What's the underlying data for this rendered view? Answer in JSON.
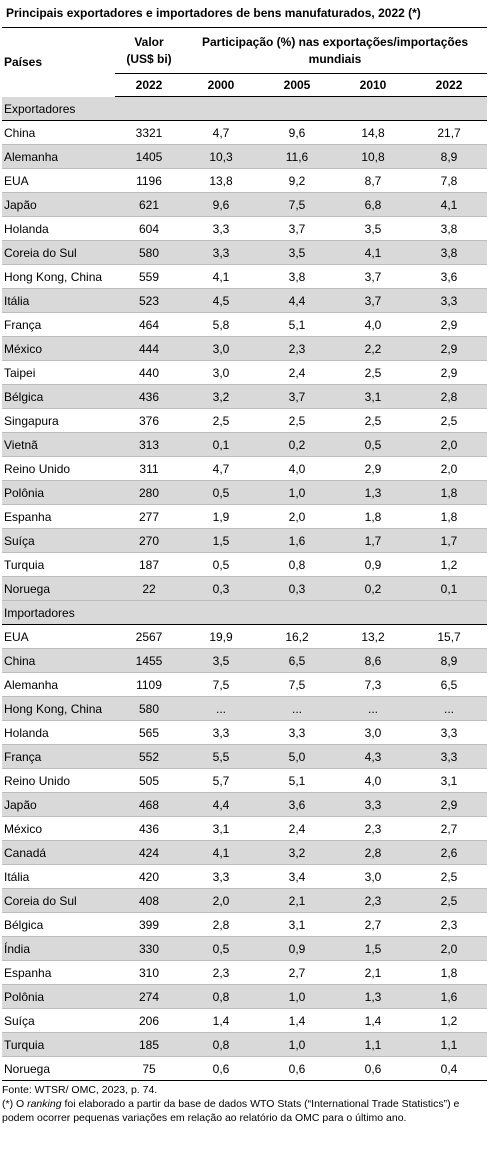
{
  "title": "Principais exportadores e importadores de bens manufaturados, 2022 (*)",
  "header": {
    "country": "Países",
    "valor_line1": "Valor",
    "valor_line2": "(US$ bi)",
    "participacao": "Participação (%) nas exportações/importações mundiais",
    "years": [
      "2022",
      "2000",
      "2005",
      "2010",
      "2022"
    ]
  },
  "sections": [
    {
      "label": "Exportadores",
      "rows": [
        {
          "name": "China",
          "valor": "3321",
          "p2000": "4,7",
          "p2005": "9,6",
          "p2010": "14,8",
          "p2022": "21,7"
        },
        {
          "name": "Alemanha",
          "valor": "1405",
          "p2000": "10,3",
          "p2005": "11,6",
          "p2010": "10,8",
          "p2022": "8,9"
        },
        {
          "name": "EUA",
          "valor": "1196",
          "p2000": "13,8",
          "p2005": "9,2",
          "p2010": "8,7",
          "p2022": "7,8"
        },
        {
          "name": "Japão",
          "valor": "621",
          "p2000": "9,6",
          "p2005": "7,5",
          "p2010": "6,8",
          "p2022": "4,1"
        },
        {
          "name": "Holanda",
          "valor": "604",
          "p2000": "3,3",
          "p2005": "3,7",
          "p2010": "3,5",
          "p2022": "3,8"
        },
        {
          "name": "Coreia do Sul",
          "valor": "580",
          "p2000": "3,3",
          "p2005": "3,5",
          "p2010": "4,1",
          "p2022": "3,8"
        },
        {
          "name": "Hong Kong, China",
          "valor": "559",
          "p2000": "4,1",
          "p2005": "3,8",
          "p2010": "3,7",
          "p2022": "3,6"
        },
        {
          "name": "Itália",
          "valor": "523",
          "p2000": "4,5",
          "p2005": "4,4",
          "p2010": "3,7",
          "p2022": "3,3"
        },
        {
          "name": "França",
          "valor": "464",
          "p2000": "5,8",
          "p2005": "5,1",
          "p2010": "4,0",
          "p2022": "2,9"
        },
        {
          "name": "México",
          "valor": "444",
          "p2000": "3,0",
          "p2005": "2,3",
          "p2010": "2,2",
          "p2022": "2,9"
        },
        {
          "name": "Taipei",
          "valor": "440",
          "p2000": "3,0",
          "p2005": "2,4",
          "p2010": "2,5",
          "p2022": "2,9"
        },
        {
          "name": "Bélgica",
          "valor": "436",
          "p2000": "3,2",
          "p2005": "3,7",
          "p2010": "3,1",
          "p2022": "2,8"
        },
        {
          "name": "Singapura",
          "valor": "376",
          "p2000": "2,5",
          "p2005": "2,5",
          "p2010": "2,5",
          "p2022": "2,5"
        },
        {
          "name": "Vietnã",
          "valor": "313",
          "p2000": "0,1",
          "p2005": "0,2",
          "p2010": "0,5",
          "p2022": "2,0"
        },
        {
          "name": "Reino Unido",
          "valor": "311",
          "p2000": "4,7",
          "p2005": "4,0",
          "p2010": "2,9",
          "p2022": "2,0"
        },
        {
          "name": "Polônia",
          "valor": "280",
          "p2000": "0,5",
          "p2005": "1,0",
          "p2010": "1,3",
          "p2022": "1,8"
        },
        {
          "name": "Espanha",
          "valor": "277",
          "p2000": "1,9",
          "p2005": "2,0",
          "p2010": "1,8",
          "p2022": "1,8"
        },
        {
          "name": "Suíça",
          "valor": "270",
          "p2000": "1,5",
          "p2005": "1,6",
          "p2010": "1,7",
          "p2022": "1,7"
        },
        {
          "name": "Turquia",
          "valor": "187",
          "p2000": "0,5",
          "p2005": "0,8",
          "p2010": "0,9",
          "p2022": "1,2"
        },
        {
          "name": "Noruega",
          "valor": "22",
          "p2000": "0,3",
          "p2005": "0,3",
          "p2010": "0,2",
          "p2022": "0,1"
        }
      ]
    },
    {
      "label": "Importadores",
      "rows": [
        {
          "name": "EUA",
          "valor": "2567",
          "p2000": "19,9",
          "p2005": "16,2",
          "p2010": "13,2",
          "p2022": "15,7"
        },
        {
          "name": "China",
          "valor": "1455",
          "p2000": "3,5",
          "p2005": "6,5",
          "p2010": "8,6",
          "p2022": "8,9"
        },
        {
          "name": "Alemanha",
          "valor": "1109",
          "p2000": "7,5",
          "p2005": "7,5",
          "p2010": "7,3",
          "p2022": "6,5"
        },
        {
          "name": "Hong Kong, China",
          "valor": "580",
          "p2000": "...",
          "p2005": "...",
          "p2010": "...",
          "p2022": "..."
        },
        {
          "name": "Holanda",
          "valor": "565",
          "p2000": "3,3",
          "p2005": "3,3",
          "p2010": "3,0",
          "p2022": "3,3"
        },
        {
          "name": "França",
          "valor": "552",
          "p2000": "5,5",
          "p2005": "5,0",
          "p2010": "4,3",
          "p2022": "3,3"
        },
        {
          "name": "Reino Unido",
          "valor": "505",
          "p2000": "5,7",
          "p2005": "5,1",
          "p2010": "4,0",
          "p2022": "3,1"
        },
        {
          "name": "Japão",
          "valor": "468",
          "p2000": "4,4",
          "p2005": "3,6",
          "p2010": "3,3",
          "p2022": "2,9"
        },
        {
          "name": "México",
          "valor": "436",
          "p2000": "3,1",
          "p2005": "2,4",
          "p2010": "2,3",
          "p2022": "2,7"
        },
        {
          "name": "Canadá",
          "valor": "424",
          "p2000": "4,1",
          "p2005": "3,2",
          "p2010": "2,8",
          "p2022": "2,6"
        },
        {
          "name": "Itália",
          "valor": "420",
          "p2000": "3,3",
          "p2005": "3,4",
          "p2010": "3,0",
          "p2022": "2,5"
        },
        {
          "name": "Coreia do Sul",
          "valor": "408",
          "p2000": "2,0",
          "p2005": "2,1",
          "p2010": "2,3",
          "p2022": "2,5"
        },
        {
          "name": "Bélgica",
          "valor": "399",
          "p2000": "2,8",
          "p2005": "3,1",
          "p2010": "2,7",
          "p2022": "2,3"
        },
        {
          "name": "Índia",
          "valor": "330",
          "p2000": "0,5",
          "p2005": "0,9",
          "p2010": "1,5",
          "p2022": "2,0"
        },
        {
          "name": "Espanha",
          "valor": "310",
          "p2000": "2,3",
          "p2005": "2,7",
          "p2010": "2,1",
          "p2022": "1,8"
        },
        {
          "name": "Polônia",
          "valor": "274",
          "p2000": "0,8",
          "p2005": "1,0",
          "p2010": "1,3",
          "p2022": "1,6"
        },
        {
          "name": "Suíça",
          "valor": "206",
          "p2000": "1,4",
          "p2005": "1,4",
          "p2010": "1,4",
          "p2022": "1,2"
        },
        {
          "name": "Turquia",
          "valor": "185",
          "p2000": "0,8",
          "p2005": "1,0",
          "p2010": "1,1",
          "p2022": "1,1"
        },
        {
          "name": "Noruega",
          "valor": "75",
          "p2000": "0,6",
          "p2005": "0,6",
          "p2010": "0,6",
          "p2022": "0,4"
        }
      ]
    }
  ],
  "footer": {
    "source": "Fonte: WTSR/ OMC, 2023, p. 74.",
    "note_prefix": "(*) O ",
    "note_italic": "ranking",
    "note_rest": " foi elaborado a partir da base de dados WTO Stats (“International Trade Statistics”) e podem ocorrer pequenas variações em relação ao relatório da OMC para o último ano."
  },
  "colors": {
    "shade": "#d9d9d9",
    "rule": "#000000",
    "light_rule": "#bdbdbd"
  }
}
